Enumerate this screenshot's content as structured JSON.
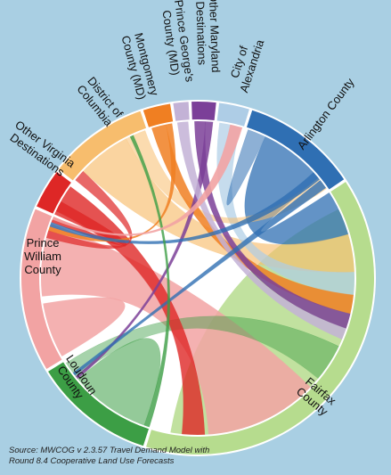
{
  "diagram": {
    "title": "",
    "segments": [
      {
        "id": "arlington",
        "label_lines": [
          "Arlington County"
        ],
        "color": "#2f6fb3"
      },
      {
        "id": "fairfax",
        "label_lines": [
          "Fairfax",
          "County"
        ],
        "color": "#b6dc8e"
      },
      {
        "id": "loudoun",
        "label_lines": [
          "Loudoun",
          "County"
        ],
        "color": "#3c9e45"
      },
      {
        "id": "pwc",
        "label_lines": [
          "Prince",
          "William",
          "County"
        ],
        "color": "#f2a3a3"
      },
      {
        "id": "ova",
        "label_lines": [
          "Other Virginia",
          "Destinations"
        ],
        "color": "#de2726"
      },
      {
        "id": "dc",
        "label_lines": [
          "District of",
          "Columbia"
        ],
        "color": "#f7bd6d"
      },
      {
        "id": "montgomery",
        "label_lines": [
          "Montgomery",
          "County (MD)"
        ],
        "color": "#f07f22"
      },
      {
        "id": "pg",
        "label_lines": [
          "Prince George's",
          "County (MD)"
        ],
        "color": "#c3b2d6"
      },
      {
        "id": "omd",
        "label_lines": [
          "Other Maryland",
          "Destinations"
        ],
        "color": "#7b3f98"
      },
      {
        "id": "alexandria",
        "label_lines": [
          "City of",
          "Alexandria"
        ],
        "color": "#aecde6"
      }
    ]
  },
  "source": {
    "line1": "Source: MWCOG  v 2.3.57 Travel Demand Model with",
    "line2": "Round 8.4 Cooperative Land Use Forecasts"
  }
}
